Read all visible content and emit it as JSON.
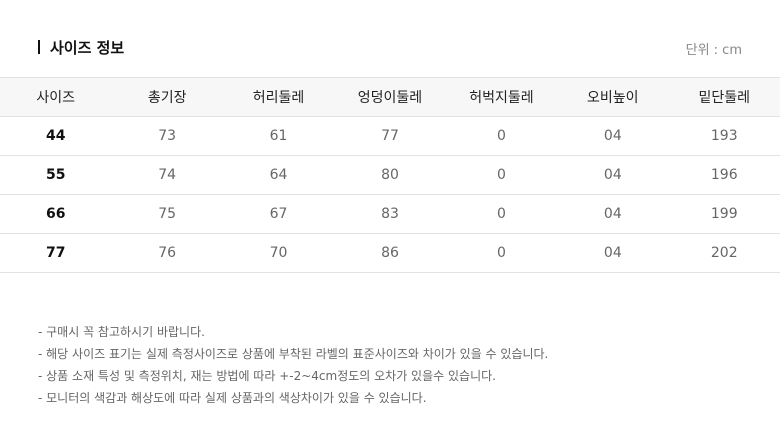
{
  "title": "사이즈 정보",
  "unit": "단위 : cm",
  "table": {
    "headers": [
      "사이즈",
      "총기장",
      "허리둘레",
      "엉덩이둘레",
      "허벅지둘레",
      "오비높이",
      "밑단둘레"
    ],
    "rows": [
      [
        "44",
        "73",
        "61",
        "77",
        "0",
        "04",
        "193"
      ],
      [
        "55",
        "74",
        "64",
        "80",
        "0",
        "04",
        "196"
      ],
      [
        "66",
        "75",
        "67",
        "83",
        "0",
        "04",
        "199"
      ],
      [
        "77",
        "76",
        "70",
        "86",
        "0",
        "04",
        "202"
      ]
    ]
  },
  "notes": [
    "- 구매시 꼭 참고하시기 바랍니다.",
    "- 해당 사이즈 표기는 실제 측정사이즈로 상품에 부착된 라벨의 표준사이즈와 차이가 있을 수 있습니다.",
    "- 상품 소재 특성 및 측정위치, 재는 방법에 따라 +-2~4cm정도의 오차가 있을수 있습니다.",
    "- 모니터의 색감과 해상도에 따라 실제 상품과의 색상차이가 있을 수 있습니다."
  ]
}
